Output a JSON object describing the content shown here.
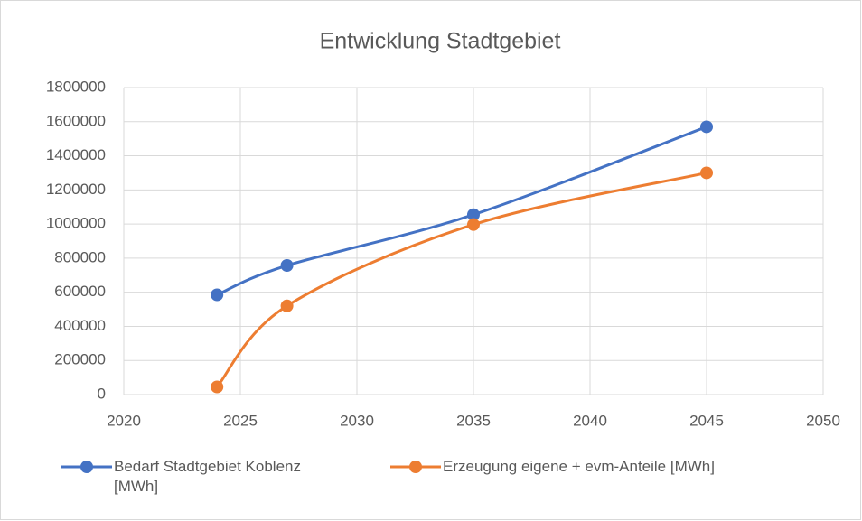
{
  "chart_data": {
    "type": "scatter-line",
    "title": "Entwicklung Stadtgebiet",
    "x": [
      2024,
      2027,
      2035,
      2045
    ],
    "series": [
      {
        "name": "Bedarf Stadtgebiet Koblenz [MWh]",
        "color": "#4472c4",
        "values": [
          585000,
          757000,
          1055000,
          1570000
        ]
      },
      {
        "name": "Erzeugung eigene + evm-Anteile [MWh]",
        "color": "#ed7d31",
        "values": [
          45000,
          520000,
          997000,
          1300000
        ]
      }
    ],
    "xlim": [
      2020,
      2050
    ],
    "xticks": [
      2020,
      2025,
      2030,
      2035,
      2040,
      2045,
      2050
    ],
    "ylim": [
      0,
      1800000
    ],
    "yticks": [
      0,
      200000,
      400000,
      600000,
      800000,
      1000000,
      1200000,
      1400000,
      1600000,
      1800000
    ],
    "grid": true,
    "legend": "bottom"
  }
}
